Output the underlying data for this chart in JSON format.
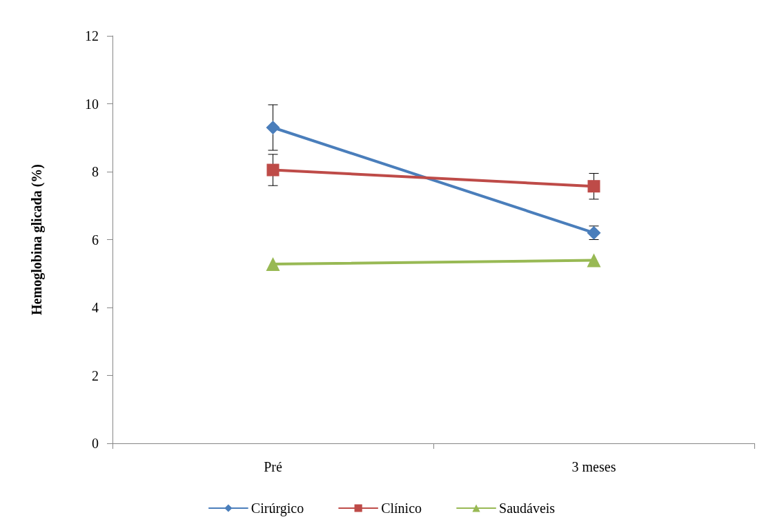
{
  "chart_data": {
    "type": "line",
    "ylabel": "Hemoglobina glicada (%)",
    "categories": [
      "Pré",
      "3 meses"
    ],
    "series": [
      {
        "name": "Cirúrgico",
        "color": "#4a7ebb",
        "marker": "diamond",
        "values": [
          9.3,
          6.2
        ],
        "errors": [
          0.67,
          0.2
        ]
      },
      {
        "name": "Clínico",
        "color": "#be4b48",
        "marker": "square",
        "values": [
          8.05,
          7.57
        ],
        "errors": [
          0.46,
          0.38
        ]
      },
      {
        "name": "Saudáveis",
        "color": "#98b954",
        "marker": "triangle",
        "values": [
          5.28,
          5.39
        ]
      }
    ],
    "ylim": [
      0,
      12
    ],
    "yticks": [
      0,
      2,
      4,
      6,
      8,
      10,
      12
    ],
    "grid": false,
    "legend": "bottom",
    "line_style": "solid"
  }
}
